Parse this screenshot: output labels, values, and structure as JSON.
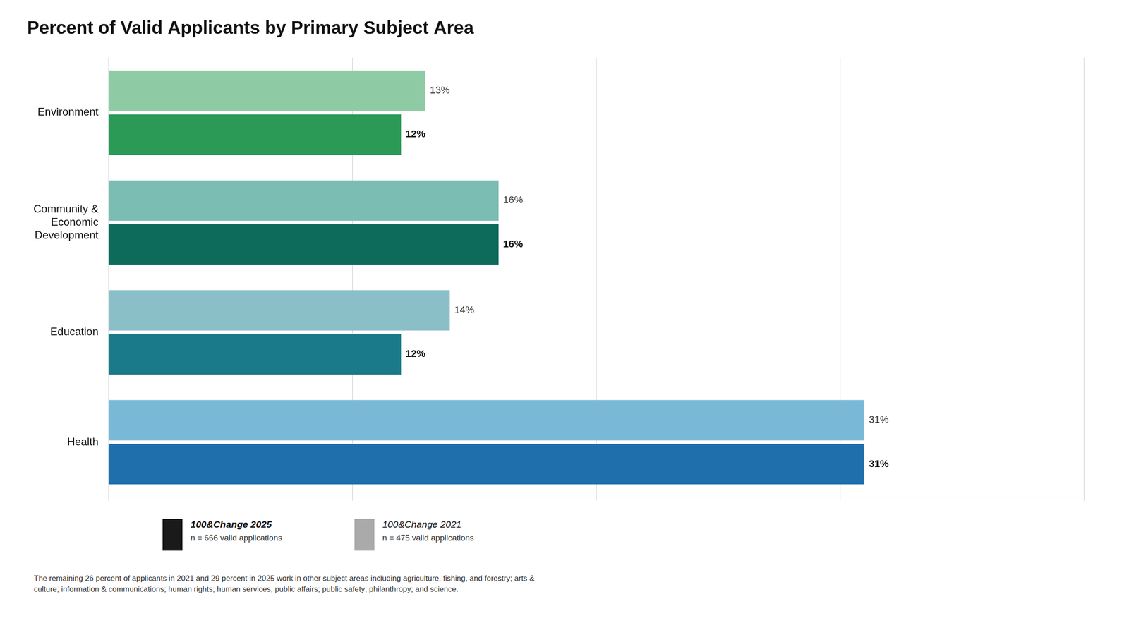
{
  "chart_data": {
    "type": "bar",
    "orientation": "horizontal",
    "title": "Percent of Valid Applicants by Primary Subject Area",
    "categories": [
      "Health",
      "Education",
      "Community &\nEconomic\nDevelopment",
      "Environment"
    ],
    "series": [
      {
        "name": "100&Change 2021",
        "color": "#aaaaaa",
        "colors": [
          "#7AB8D8",
          "#8BBFC8",
          "#7BBDB3",
          "#8ECBA4"
        ],
        "values": [
          31,
          14,
          16,
          13
        ],
        "value_labels": [
          "31%",
          "14%",
          "16%",
          "13%"
        ],
        "annotation": "n = 475 valid applications"
      },
      {
        "name": "100&Change 2025",
        "color": "#1a1a1a",
        "colors": [
          "#1F6FAD",
          "#1A7A8A",
          "#0D6B5C",
          "#2A9A56"
        ],
        "values": [
          31,
          12,
          16,
          12
        ],
        "value_labels": [
          "31%",
          "12%",
          "16%",
          "12%"
        ],
        "annotation": "n = 666 valid applications"
      }
    ],
    "xlim": [
      0,
      40
    ],
    "xticks": [
      0,
      10,
      20,
      30,
      40
    ],
    "grid": true,
    "tick_labels": "y",
    "data_labels": true,
    "annotations": [
      "The remaining 26 percent of applicants in 2021 and 29 percent in 2025 work in other subject areas including agriculture, fishing, and forestry; arts &\nculture; information & communications; human rights; human services; public affairs; public safety; philanthropy; and science."
    ]
  }
}
